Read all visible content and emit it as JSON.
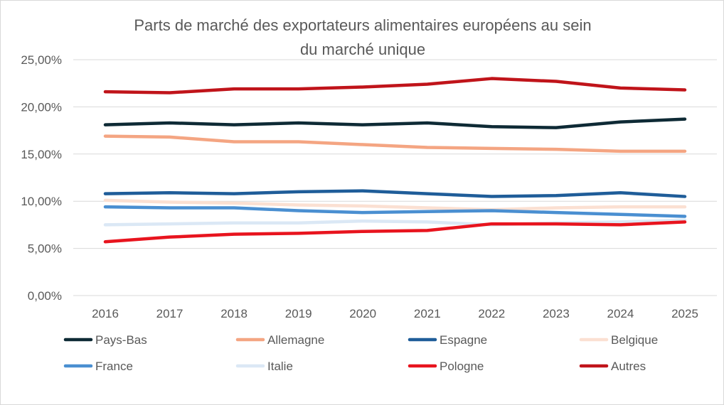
{
  "chart_data": {
    "type": "line",
    "title": "Parts de marché des exportateurs alimentaires européens au sein du marché unique",
    "title_lines": [
      "Parts de marché des exportateurs alimentaires européens au sein",
      "du marché unique"
    ],
    "xlabel": "",
    "ylabel": "",
    "categories": [
      "2016",
      "2017",
      "2018",
      "2019",
      "2020",
      "2021",
      "2022",
      "2023",
      "2024",
      "2025"
    ],
    "ylim": [
      0,
      25
    ],
    "yticks": [
      "0,00%",
      "5,00%",
      "10,00%",
      "15,00%",
      "20,00%",
      "25,00%"
    ],
    "ytick_values": [
      0,
      5,
      10,
      15,
      20,
      25
    ],
    "grid": true,
    "legend_position": "bottom",
    "series": [
      {
        "name": "Pays-Bas",
        "color": "#0e2a35",
        "values": [
          18.1,
          18.3,
          18.1,
          18.3,
          18.1,
          18.3,
          17.9,
          17.8,
          18.4,
          18.7
        ]
      },
      {
        "name": "Allemagne",
        "color": "#f4a582",
        "values": [
          16.9,
          16.8,
          16.3,
          16.3,
          16.0,
          15.7,
          15.6,
          15.5,
          15.3,
          15.3
        ]
      },
      {
        "name": "Espagne",
        "color": "#1f5d99",
        "values": [
          10.8,
          10.9,
          10.8,
          11.0,
          11.1,
          10.8,
          10.5,
          10.6,
          10.9,
          10.5
        ]
      },
      {
        "name": "Belgique",
        "color": "#fbe0d2",
        "values": [
          10.1,
          9.9,
          9.8,
          9.6,
          9.5,
          9.3,
          9.1,
          9.3,
          9.4,
          9.4
        ]
      },
      {
        "name": "France",
        "color": "#4a8fd1",
        "values": [
          9.4,
          9.3,
          9.3,
          9.0,
          8.8,
          8.9,
          9.0,
          8.8,
          8.6,
          8.4
        ]
      },
      {
        "name": "Italie",
        "color": "#dbe8f5",
        "values": [
          7.5,
          7.6,
          7.7,
          7.7,
          7.9,
          7.8,
          7.5,
          7.7,
          7.8,
          8.0
        ]
      },
      {
        "name": "Pologne",
        "color": "#e8141e",
        "values": [
          5.7,
          6.2,
          6.5,
          6.6,
          6.8,
          6.9,
          7.6,
          7.6,
          7.5,
          7.8
        ]
      },
      {
        "name": "Autres",
        "color": "#c0141a",
        "values": [
          21.6,
          21.5,
          21.9,
          21.9,
          22.1,
          22.4,
          23.0,
          22.7,
          22.0,
          21.8
        ]
      }
    ]
  }
}
